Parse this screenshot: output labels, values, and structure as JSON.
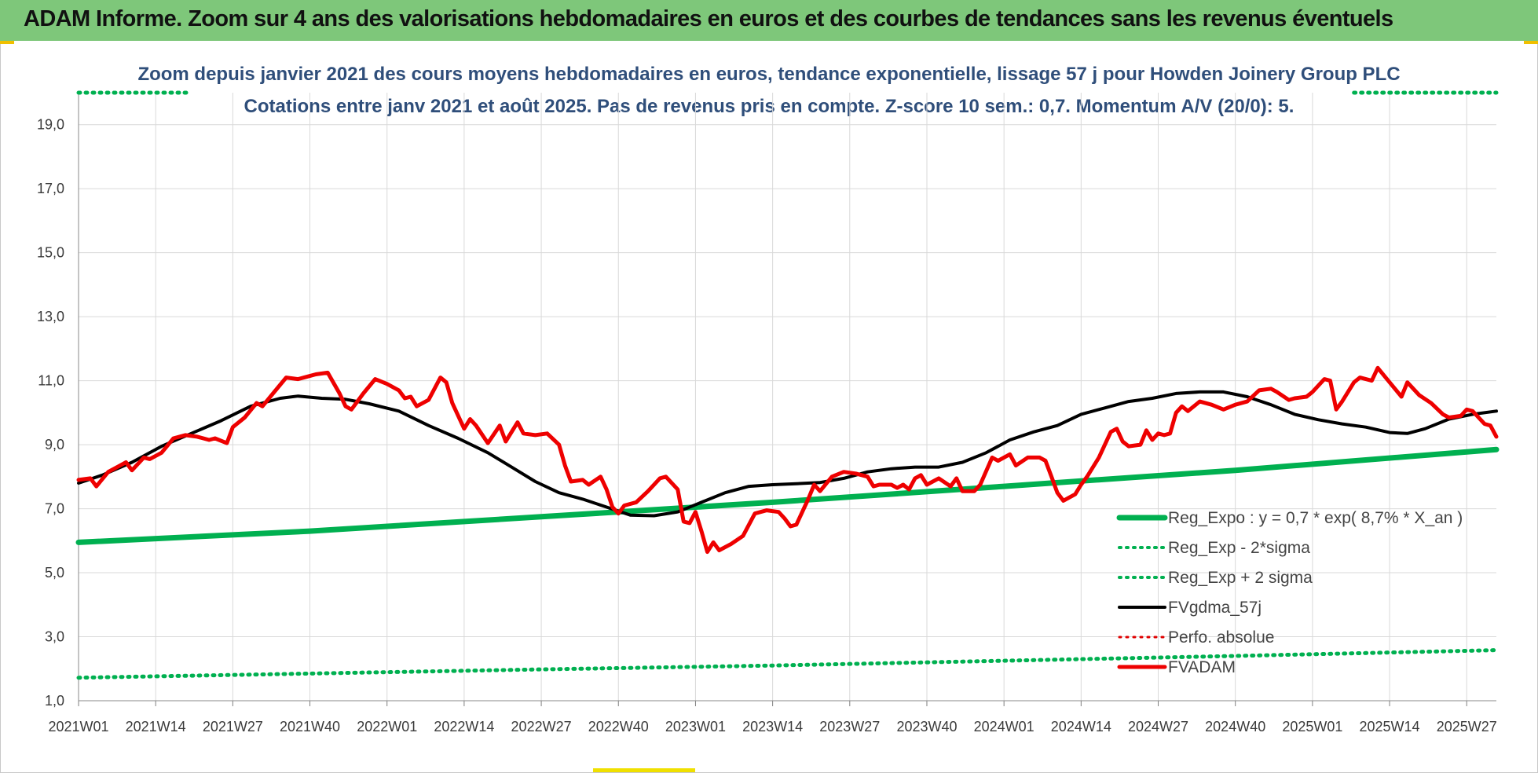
{
  "header": {
    "title": "ADAM Informe. Zoom sur 4 ans des valorisations hebdomadaires en euros et des courbes de tendances sans les revenus éventuels"
  },
  "chart_data": {
    "type": "line",
    "title": "Zoom depuis janvier 2021 des cours moyens hebdomadaires en euros, tendance exponentielle, lissage 57 j pour Howden Joinery Group PLC",
    "subtitle": "Cotations entre janv 2021 et août 2025.  Pas de revenus pris en compte. Z-score 10 sem.: 0,7. Momentum A/V (20/0): 5.",
    "xlabel": "",
    "ylabel": "",
    "ylim": [
      1,
      20
    ],
    "y_ticks": [
      "1,0",
      "3,0",
      "5,0",
      "7,0",
      "9,0",
      "11,0",
      "13,0",
      "15,0",
      "17,0",
      "19,0"
    ],
    "x_range": [
      1,
      240
    ],
    "x_ticks": [
      {
        "label": "2021W01",
        "x": 1
      },
      {
        "label": "2021W14",
        "x": 14
      },
      {
        "label": "2021W27",
        "x": 27
      },
      {
        "label": "2021W40",
        "x": 40
      },
      {
        "label": "2022W01",
        "x": 53
      },
      {
        "label": "2022W14",
        "x": 66
      },
      {
        "label": "2022W27",
        "x": 79
      },
      {
        "label": "2022W40",
        "x": 92
      },
      {
        "label": "2023W01",
        "x": 105
      },
      {
        "label": "2023W14",
        "x": 118
      },
      {
        "label": "2023W27",
        "x": 131
      },
      {
        "label": "2023W40",
        "x": 144
      },
      {
        "label": "2024W01",
        "x": 157
      },
      {
        "label": "2024W14",
        "x": 170
      },
      {
        "label": "2024W27",
        "x": 183
      },
      {
        "label": "2024W40",
        "x": 196
      },
      {
        "label": "2025W01",
        "x": 209
      },
      {
        "label": "2025W14",
        "x": 222
      },
      {
        "label": "2025W27",
        "x": 235
      }
    ],
    "grid": true,
    "legend_position": "bottom-right",
    "series": [
      {
        "name": "Reg_Expo : y = 0,7 * exp( 8,7% *  X_an )",
        "style": "solid",
        "color": "#00b050",
        "width": 7,
        "points": [
          [
            1,
            5.95
          ],
          [
            40,
            6.3
          ],
          [
            79,
            6.75
          ],
          [
            118,
            7.2
          ],
          [
            157,
            7.7
          ],
          [
            196,
            8.2
          ],
          [
            240,
            8.85
          ]
        ]
      },
      {
        "name": "Reg_Exp - 2*sigma",
        "style": "dotted",
        "color": "#00b050",
        "width": 5,
        "points": [
          [
            1,
            1.72
          ],
          [
            40,
            1.85
          ],
          [
            79,
            1.98
          ],
          [
            118,
            2.1
          ],
          [
            157,
            2.25
          ],
          [
            196,
            2.4
          ],
          [
            240,
            2.58
          ]
        ]
      },
      {
        "name": "Reg_Exp + 2 sigma",
        "style": "dotted",
        "color": "#00b050",
        "width": 5,
        "segments": [
          [
            [
              1,
              20.0
            ],
            [
              20,
              20.0
            ]
          ],
          [
            [
              216,
              20.0
            ],
            [
              240,
              20.0
            ]
          ]
        ]
      },
      {
        "name": "FVgdma_57j",
        "style": "solid",
        "color": "#000000",
        "width": 4,
        "points": [
          [
            1,
            7.8
          ],
          [
            5,
            8.05
          ],
          [
            10,
            8.45
          ],
          [
            15,
            8.95
          ],
          [
            20,
            9.35
          ],
          [
            25,
            9.75
          ],
          [
            30,
            10.2
          ],
          [
            35,
            10.45
          ],
          [
            38,
            10.52
          ],
          [
            42,
            10.45
          ],
          [
            46,
            10.42
          ],
          [
            50,
            10.28
          ],
          [
            55,
            10.05
          ],
          [
            60,
            9.6
          ],
          [
            65,
            9.2
          ],
          [
            70,
            8.75
          ],
          [
            74,
            8.3
          ],
          [
            78,
            7.85
          ],
          [
            82,
            7.5
          ],
          [
            86,
            7.3
          ],
          [
            90,
            7.05
          ],
          [
            94,
            6.8
          ],
          [
            98,
            6.78
          ],
          [
            102,
            6.9
          ],
          [
            106,
            7.2
          ],
          [
            110,
            7.5
          ],
          [
            114,
            7.7
          ],
          [
            118,
            7.75
          ],
          [
            122,
            7.78
          ],
          [
            126,
            7.82
          ],
          [
            130,
            7.95
          ],
          [
            134,
            8.15
          ],
          [
            138,
            8.25
          ],
          [
            142,
            8.3
          ],
          [
            146,
            8.3
          ],
          [
            150,
            8.45
          ],
          [
            154,
            8.75
          ],
          [
            158,
            9.15
          ],
          [
            162,
            9.4
          ],
          [
            166,
            9.6
          ],
          [
            170,
            9.95
          ],
          [
            174,
            10.15
          ],
          [
            178,
            10.35
          ],
          [
            182,
            10.45
          ],
          [
            186,
            10.6
          ],
          [
            190,
            10.65
          ],
          [
            194,
            10.65
          ],
          [
            198,
            10.5
          ],
          [
            202,
            10.25
          ],
          [
            206,
            9.95
          ],
          [
            210,
            9.78
          ],
          [
            214,
            9.65
          ],
          [
            218,
            9.55
          ],
          [
            222,
            9.38
          ],
          [
            225,
            9.35
          ],
          [
            228,
            9.5
          ],
          [
            232,
            9.8
          ],
          [
            236,
            9.95
          ],
          [
            240,
            10.05
          ]
        ]
      },
      {
        "name": "Perfo. absolue",
        "style": "dotted",
        "color": "#e00000",
        "width": 3,
        "points": []
      },
      {
        "name": "FVADAM",
        "style": "solid",
        "color": "#ee0000",
        "width": 5,
        "points": [
          [
            1,
            7.9
          ],
          [
            3,
            7.95
          ],
          [
            4,
            7.7
          ],
          [
            6,
            8.15
          ],
          [
            8,
            8.35
          ],
          [
            9,
            8.45
          ],
          [
            10,
            8.2
          ],
          [
            12,
            8.6
          ],
          [
            13,
            8.55
          ],
          [
            15,
            8.75
          ],
          [
            17,
            9.2
          ],
          [
            19,
            9.3
          ],
          [
            21,
            9.25
          ],
          [
            23,
            9.15
          ],
          [
            24,
            9.2
          ],
          [
            26,
            9.05
          ],
          [
            27,
            9.55
          ],
          [
            29,
            9.85
          ],
          [
            31,
            10.3
          ],
          [
            32,
            10.2
          ],
          [
            34,
            10.65
          ],
          [
            36,
            11.1
          ],
          [
            38,
            11.05
          ],
          [
            39,
            11.1
          ],
          [
            41,
            11.2
          ],
          [
            43,
            11.25
          ],
          [
            45,
            10.6
          ],
          [
            46,
            10.2
          ],
          [
            47,
            10.1
          ],
          [
            49,
            10.6
          ],
          [
            51,
            11.05
          ],
          [
            53,
            10.9
          ],
          [
            55,
            10.7
          ],
          [
            56,
            10.45
          ],
          [
            57,
            10.5
          ],
          [
            58,
            10.2
          ],
          [
            60,
            10.4
          ],
          [
            62,
            11.1
          ],
          [
            63,
            10.95
          ],
          [
            64,
            10.3
          ],
          [
            66,
            9.5
          ],
          [
            67,
            9.8
          ],
          [
            68,
            9.6
          ],
          [
            70,
            9.05
          ],
          [
            72,
            9.6
          ],
          [
            73,
            9.1
          ],
          [
            75,
            9.7
          ],
          [
            76,
            9.35
          ],
          [
            78,
            9.3
          ],
          [
            80,
            9.35
          ],
          [
            82,
            9.0
          ],
          [
            83,
            8.35
          ],
          [
            84,
            7.85
          ],
          [
            86,
            7.9
          ],
          [
            87,
            7.75
          ],
          [
            89,
            8.0
          ],
          [
            90,
            7.6
          ],
          [
            91,
            7.05
          ],
          [
            92,
            6.85
          ],
          [
            93,
            7.1
          ],
          [
            95,
            7.2
          ],
          [
            97,
            7.55
          ],
          [
            99,
            7.95
          ],
          [
            100,
            8.0
          ],
          [
            102,
            7.6
          ],
          [
            103,
            6.6
          ],
          [
            104,
            6.55
          ],
          [
            105,
            6.9
          ],
          [
            106,
            6.3
          ],
          [
            107,
            5.65
          ],
          [
            108,
            5.95
          ],
          [
            109,
            5.7
          ],
          [
            111,
            5.9
          ],
          [
            113,
            6.15
          ],
          [
            115,
            6.85
          ],
          [
            117,
            6.95
          ],
          [
            119,
            6.9
          ],
          [
            120,
            6.7
          ],
          [
            121,
            6.45
          ],
          [
            122,
            6.5
          ],
          [
            124,
            7.3
          ],
          [
            125,
            7.75
          ],
          [
            126,
            7.55
          ],
          [
            128,
            8.0
          ],
          [
            130,
            8.15
          ],
          [
            132,
            8.1
          ],
          [
            134,
            8.0
          ],
          [
            135,
            7.7
          ],
          [
            136,
            7.75
          ],
          [
            138,
            7.75
          ],
          [
            139,
            7.65
          ],
          [
            140,
            7.75
          ],
          [
            141,
            7.6
          ],
          [
            142,
            7.95
          ],
          [
            143,
            8.05
          ],
          [
            144,
            7.75
          ],
          [
            146,
            7.95
          ],
          [
            148,
            7.7
          ],
          [
            149,
            7.95
          ],
          [
            150,
            7.55
          ],
          [
            152,
            7.55
          ],
          [
            153,
            7.75
          ],
          [
            155,
            8.6
          ],
          [
            156,
            8.5
          ],
          [
            158,
            8.7
          ],
          [
            159,
            8.35
          ],
          [
            161,
            8.6
          ],
          [
            163,
            8.6
          ],
          [
            164,
            8.5
          ],
          [
            165,
            8.0
          ],
          [
            166,
            7.5
          ],
          [
            167,
            7.25
          ],
          [
            168,
            7.35
          ],
          [
            169,
            7.45
          ],
          [
            170,
            7.75
          ],
          [
            171,
            8.0
          ],
          [
            173,
            8.6
          ],
          [
            175,
            9.4
          ],
          [
            176,
            9.5
          ],
          [
            177,
            9.1
          ],
          [
            178,
            8.95
          ],
          [
            180,
            9.0
          ],
          [
            181,
            9.45
          ],
          [
            182,
            9.15
          ],
          [
            183,
            9.35
          ],
          [
            184,
            9.3
          ],
          [
            185,
            9.35
          ],
          [
            186,
            10.0
          ],
          [
            187,
            10.2
          ],
          [
            188,
            10.05
          ],
          [
            190,
            10.35
          ],
          [
            192,
            10.25
          ],
          [
            194,
            10.1
          ],
          [
            196,
            10.25
          ],
          [
            198,
            10.35
          ],
          [
            200,
            10.7
          ],
          [
            202,
            10.75
          ],
          [
            203,
            10.65
          ],
          [
            205,
            10.4
          ],
          [
            206,
            10.45
          ],
          [
            208,
            10.5
          ],
          [
            209,
            10.65
          ],
          [
            211,
            11.05
          ],
          [
            212,
            11.0
          ],
          [
            213,
            10.1
          ],
          [
            214,
            10.35
          ],
          [
            216,
            10.95
          ],
          [
            217,
            11.1
          ],
          [
            219,
            11.0
          ],
          [
            220,
            11.4
          ],
          [
            222,
            10.95
          ],
          [
            224,
            10.5
          ],
          [
            225,
            10.95
          ],
          [
            227,
            10.55
          ],
          [
            229,
            10.3
          ],
          [
            231,
            9.95
          ],
          [
            232,
            9.85
          ],
          [
            234,
            9.9
          ],
          [
            235,
            10.1
          ],
          [
            236,
            10.05
          ],
          [
            238,
            9.65
          ],
          [
            239,
            9.6
          ],
          [
            240,
            9.25
          ]
        ]
      }
    ]
  }
}
